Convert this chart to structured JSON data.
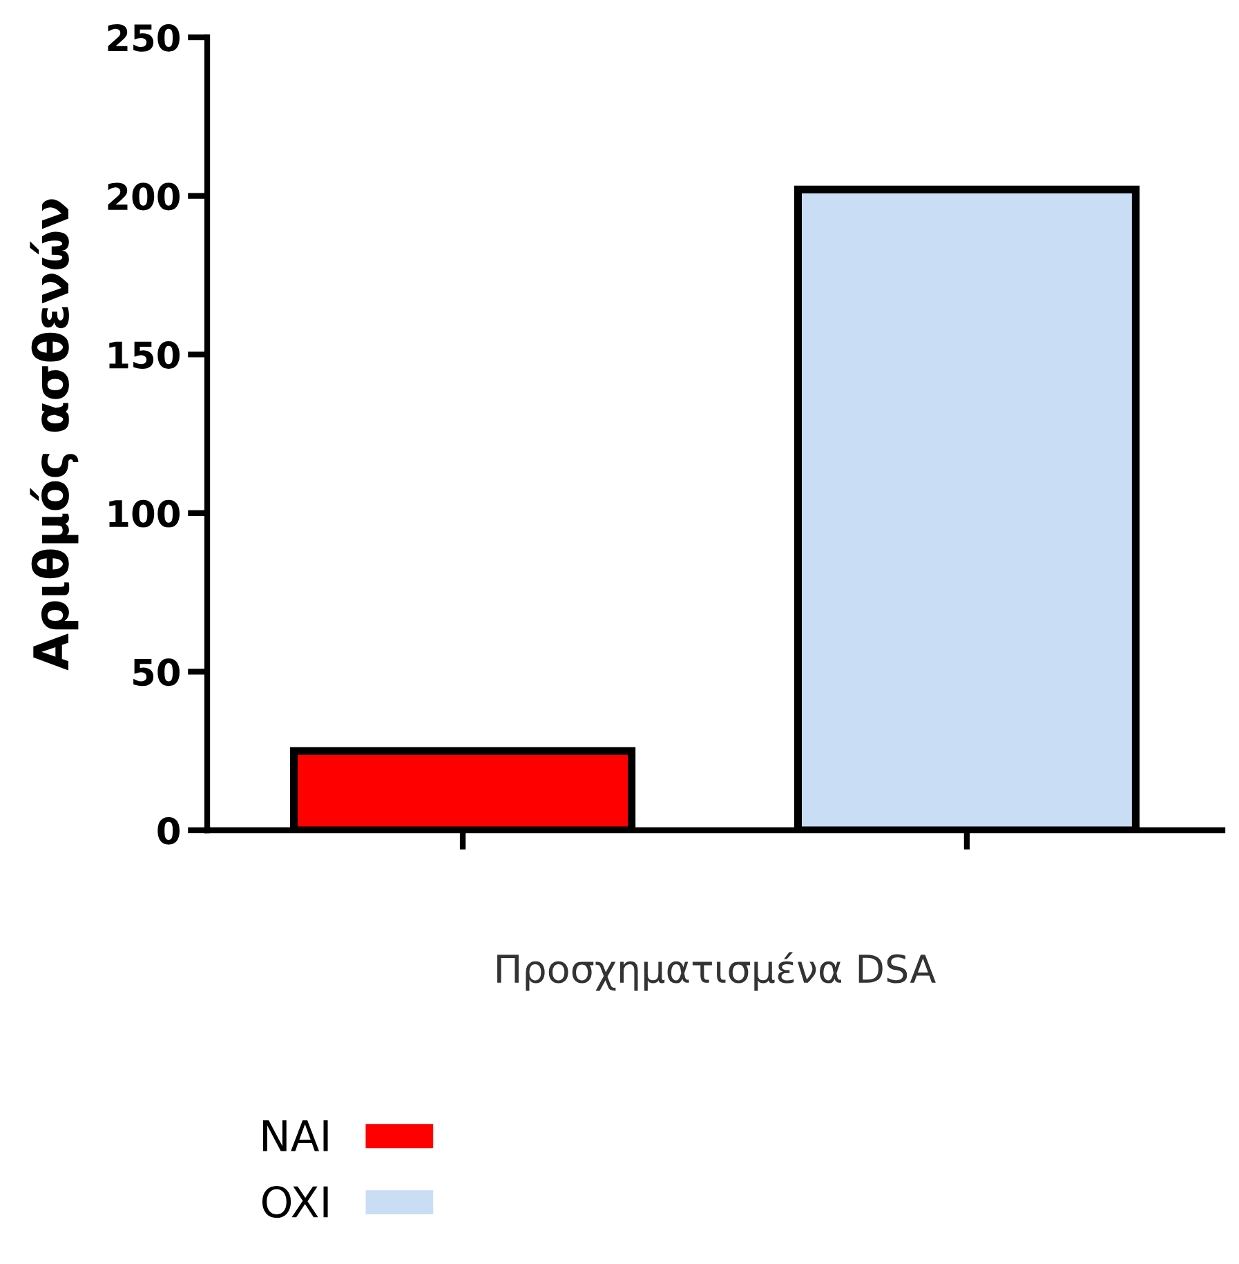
{
  "chart_data": {
    "type": "bar",
    "xlabel": "Προσχηματισμένα DSA",
    "ylabel": "Αριθμός ασθενών",
    "categories": [
      null,
      null
    ],
    "series": [
      {
        "name": "NAI",
        "color": "#ff0000",
        "values": [
          25,
          null
        ]
      },
      {
        "name": "OXI",
        "color": "#c9ddf5",
        "values": [
          null,
          202
        ]
      }
    ],
    "ylim": [
      0,
      250
    ],
    "yticks": [
      0,
      50,
      100,
      150,
      200,
      250
    ],
    "grid": false,
    "legend": "bottom left"
  }
}
